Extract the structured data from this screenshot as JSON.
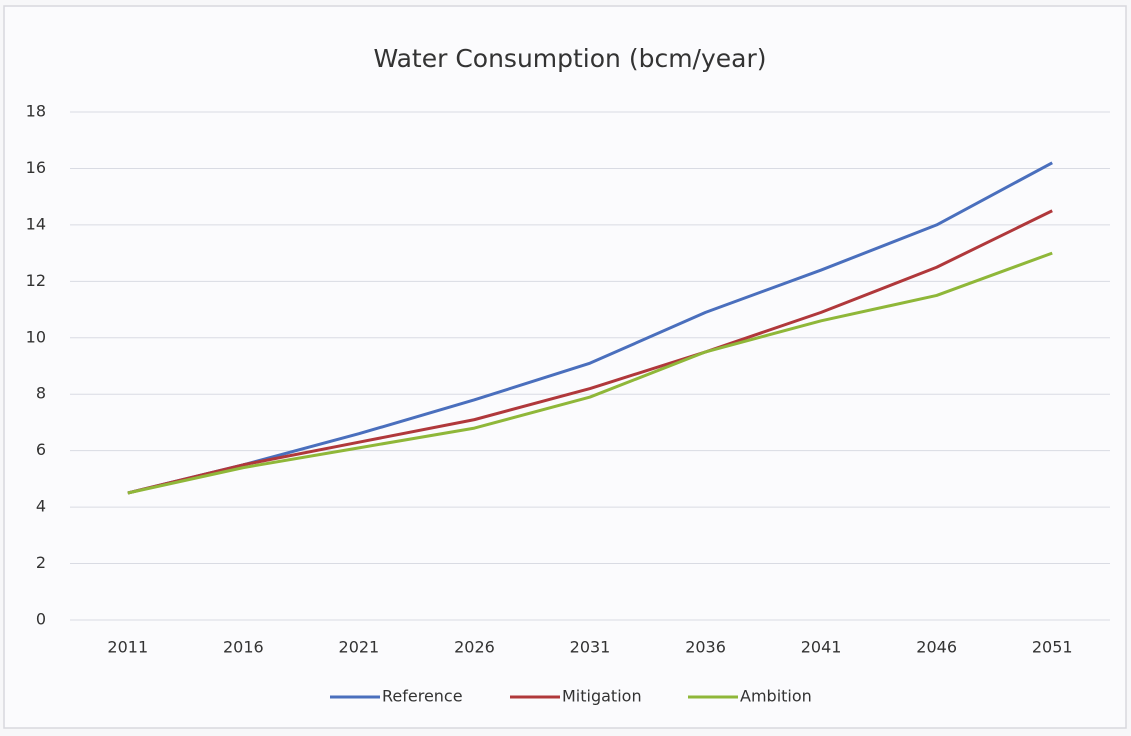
{
  "chart_data": {
    "type": "line",
    "title": "Water Consumption  (bcm/year)",
    "categories": [
      "2011",
      "2016",
      "2021",
      "2026",
      "2031",
      "2036",
      "2041",
      "2046",
      "2051"
    ],
    "series": [
      {
        "name": "Reference",
        "color": "#4a6fbd",
        "values": [
          4.5,
          5.5,
          6.6,
          7.8,
          9.1,
          10.9,
          12.4,
          14.0,
          16.2
        ]
      },
      {
        "name": "Mitigation",
        "color": "#b0383b",
        "values": [
          4.5,
          5.5,
          6.3,
          7.1,
          8.2,
          9.5,
          10.9,
          12.5,
          14.5
        ]
      },
      {
        "name": "Ambition",
        "color": "#8fb739",
        "values": [
          4.5,
          5.4,
          6.1,
          6.8,
          7.9,
          9.5,
          10.6,
          11.5,
          13.0
        ]
      }
    ],
    "ylim": [
      0,
      18
    ],
    "yticks": [
      0,
      2,
      4,
      6,
      8,
      10,
      12,
      14,
      16,
      18
    ],
    "grid": true,
    "legend": "bottom"
  }
}
